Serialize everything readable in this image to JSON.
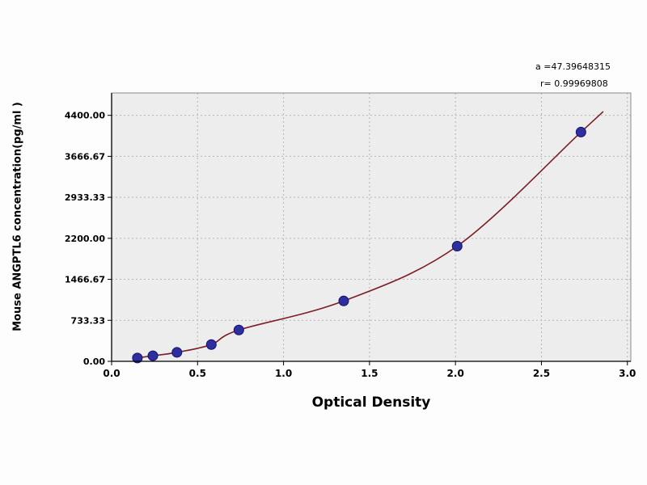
{
  "chart_data": {
    "type": "scatter",
    "title": "",
    "xlabel": "Optical Density",
    "ylabel": "Mouse ANGPTL6  concentration(pg/ml )",
    "annotations": [
      "a =47.39648315",
      "r= 0.99969808"
    ],
    "x": [
      0.15,
      0.24,
      0.38,
      0.58,
      0.74,
      1.35,
      2.01,
      2.73
    ],
    "y": [
      60,
      100,
      160,
      300,
      560,
      1080,
      2060,
      4100
    ],
    "x_ticks": [
      0.0,
      0.5,
      1.0,
      1.5,
      2.0,
      2.5,
      3.0
    ],
    "x_tick_labels": [
      "0.0",
      "0.5",
      "1.0",
      "1.5",
      "2.0",
      "2.5",
      "3.0"
    ],
    "y_ticks": [
      0,
      733.33,
      1466.67,
      2200,
      2933.33,
      3666.67,
      4400
    ],
    "y_tick_labels": [
      "0.00",
      "733.33",
      "1466.67",
      "2200.00",
      "2933.33",
      "3666.67",
      "4400.00"
    ],
    "xlim": [
      0,
      3.02
    ],
    "ylim": [
      0,
      4800
    ],
    "grid": true,
    "legend": "none",
    "colors": {
      "curve": "#7b1f24",
      "marker": "#2e2e9e",
      "marker_edge": "#12126e",
      "plot_bg": "#ededed",
      "grid": "#b5b5b5",
      "frame": "#8a8a8a",
      "axis": "#000000"
    }
  }
}
